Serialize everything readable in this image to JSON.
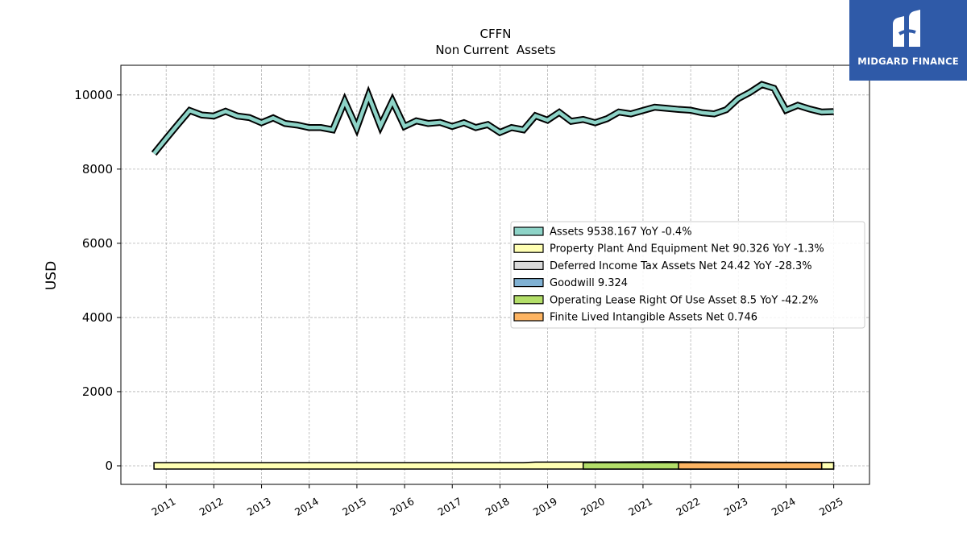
{
  "chart_data": {
    "type": "area",
    "title": "CFFN",
    "subtitle": "Non Current  Assets",
    "ylabel": "USD",
    "xlabel": "",
    "ylim": [
      -500,
      10800
    ],
    "xlim": [
      2010.05,
      2025.75
    ],
    "yticks": [
      0,
      2000,
      4000,
      6000,
      8000,
      10000
    ],
    "xticks": [
      "2011",
      "2012",
      "2013",
      "2014",
      "2015",
      "2016",
      "2017",
      "2018",
      "2019",
      "2020",
      "2021",
      "2022",
      "2023",
      "2024",
      "2025"
    ],
    "grid": true,
    "legend_position": "center-right",
    "series": [
      {
        "name": "Assets",
        "legend": "Assets  9538.167 YoY -0.4%",
        "color": "#8dd3c7",
        "x": [
          "2010-09-30",
          "2010-12-31",
          "2011-03-31",
          "2011-06-30",
          "2011-09-30",
          "2011-12-31",
          "2012-03-31",
          "2012-06-30",
          "2012-09-30",
          "2012-12-31",
          "2013-03-31",
          "2013-06-30",
          "2013-09-30",
          "2013-12-31",
          "2014-03-31",
          "2014-06-30",
          "2014-09-30",
          "2014-12-31",
          "2015-03-31",
          "2015-06-30",
          "2015-09-30",
          "2015-12-31",
          "2016-03-31",
          "2016-06-30",
          "2016-09-30",
          "2016-12-31",
          "2017-03-31",
          "2017-06-30",
          "2017-09-30",
          "2017-12-31",
          "2018-03-31",
          "2018-06-30",
          "2018-09-30",
          "2018-12-31",
          "2019-03-31",
          "2019-06-30",
          "2019-09-30",
          "2019-12-31",
          "2020-03-31",
          "2020-06-30",
          "2020-09-30",
          "2020-12-31",
          "2021-03-31",
          "2021-06-30",
          "2021-09-30",
          "2021-12-31",
          "2022-03-31",
          "2022-06-30",
          "2022-09-30",
          "2022-12-31",
          "2023-03-31",
          "2023-06-30",
          "2023-09-30",
          "2023-12-31",
          "2024-03-31",
          "2024-06-30",
          "2024-09-30",
          "2024-12-31"
        ],
        "values": [
          8420,
          8820,
          9200,
          9580,
          9460,
          9430,
          9560,
          9430,
          9390,
          9250,
          9380,
          9230,
          9190,
          9120,
          9120,
          9060,
          9830,
          9110,
          9990,
          9160,
          9840,
          9150,
          9300,
          9230,
          9260,
          9150,
          9250,
          9120,
          9200,
          8990,
          9120,
          9060,
          9440,
          9320,
          9530,
          9290,
          9340,
          9250,
          9360,
          9540,
          9490,
          9580,
          9670,
          9640,
          9610,
          9590,
          9520,
          9490,
          9600,
          9900,
          10070,
          10280,
          10180,
          9590,
          9720,
          9620,
          9540,
          9550
        ]
      },
      {
        "name": "Property Plant And Equipment Net",
        "legend": "Property Plant And Equipment Net  90.326 YoY -1.3%",
        "color": "#ffffb3",
        "x": [
          "2010-09-30",
          "2012-06-30",
          "2014-03-31",
          "2016-03-31",
          "2018-06-30",
          "2018-09-30",
          "2020-06-30",
          "2021-06-30",
          "2022-06-30",
          "2023-06-30",
          "2024-12-31"
        ],
        "values": [
          50,
          60,
          75,
          75,
          80,
          100,
          105,
          110,
          100,
          95,
          90
        ]
      },
      {
        "name": "Deferred Income Tax Assets Net",
        "legend": "Deferred Income Tax Assets Net  24.42 YoY -28.3%",
        "color": "#d9d9d9",
        "x": [
          "2024-09-30",
          "2024-12-31"
        ],
        "values": [
          34,
          24
        ]
      },
      {
        "name": "Goodwill",
        "legend": "Goodwill  9.324",
        "color": "#80b1d3",
        "x": [],
        "values": []
      },
      {
        "name": "Operating Lease Right Of Use Asset",
        "legend": "Operating Lease Right Of Use Asset  8.5 YoY -42.2%",
        "color": "#b3de69",
        "x": [
          "2019-09-30",
          "2020-06-30",
          "2021-09-30",
          "2022-06-30",
          "2023-06-30",
          "2024-09-30"
        ],
        "values": [
          18,
          16,
          15,
          13,
          11,
          8.5
        ]
      },
      {
        "name": "Finite Lived Intangible Assets Net",
        "legend": "Finite Lived Intangible Assets Net  0.746",
        "color": "#fdb462",
        "x": [
          "2021-09-30",
          "2024-09-30"
        ],
        "values": [
          1.2,
          0.746
        ]
      }
    ]
  },
  "logo": {
    "text": "MIDGARD FINANCE"
  }
}
